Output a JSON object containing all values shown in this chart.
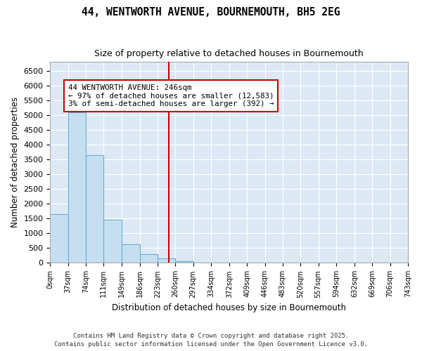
{
  "title1": "44, WENTWORTH AVENUE, BOURNEMOUTH, BH5 2EG",
  "title2": "Size of property relative to detached houses in Bournemouth",
  "xlabel": "Distribution of detached houses by size in Bournemouth",
  "ylabel": "Number of detached properties",
  "bar_edges": [
    0,
    37,
    74,
    111,
    149,
    186,
    223,
    260,
    297,
    334,
    372,
    409,
    446,
    483,
    520,
    557,
    594,
    632,
    669,
    706,
    743
  ],
  "bar_heights": [
    1650,
    5100,
    3650,
    1450,
    625,
    300,
    150,
    50,
    0,
    0,
    0,
    0,
    0,
    0,
    0,
    0,
    0,
    0,
    0,
    0
  ],
  "bar_color": "#c5dff0",
  "bar_edge_color": "#6aaed6",
  "bar_linewidth": 0.8,
  "vline_x": 246,
  "vline_color": "#cc0000",
  "vline_linewidth": 1.5,
  "annotation_line1": "44 WENTWORTH AVENUE: 246sqm",
  "annotation_line2": "← 97% of detached houses are smaller (12,583)",
  "annotation_line3": "3% of semi-detached houses are larger (392) →",
  "annotation_box_color": "#cc0000",
  "annotation_text_color": "#000000",
  "ylim": [
    0,
    6800
  ],
  "yticks": [
    0,
    500,
    1000,
    1500,
    2000,
    2500,
    3000,
    3500,
    4000,
    4500,
    5000,
    5500,
    6000,
    6500
  ],
  "axes_background": "#dce9f5",
  "figure_background": "#ffffff",
  "grid_color": "#ffffff",
  "footer1": "Contains HM Land Registry data © Crown copyright and database right 2025.",
  "footer2": "Contains public sector information licensed under the Open Government Licence v3.0.",
  "tick_labels": [
    "0sqm",
    "37sqm",
    "74sqm",
    "111sqm",
    "149sqm",
    "186sqm",
    "223sqm",
    "260sqm",
    "297sqm",
    "334sqm",
    "372sqm",
    "409sqm",
    "446sqm",
    "483sqm",
    "520sqm",
    "557sqm",
    "594sqm",
    "632sqm",
    "669sqm",
    "706sqm",
    "743sqm"
  ],
  "figsize": [
    6.0,
    5.0
  ],
  "dpi": 100
}
